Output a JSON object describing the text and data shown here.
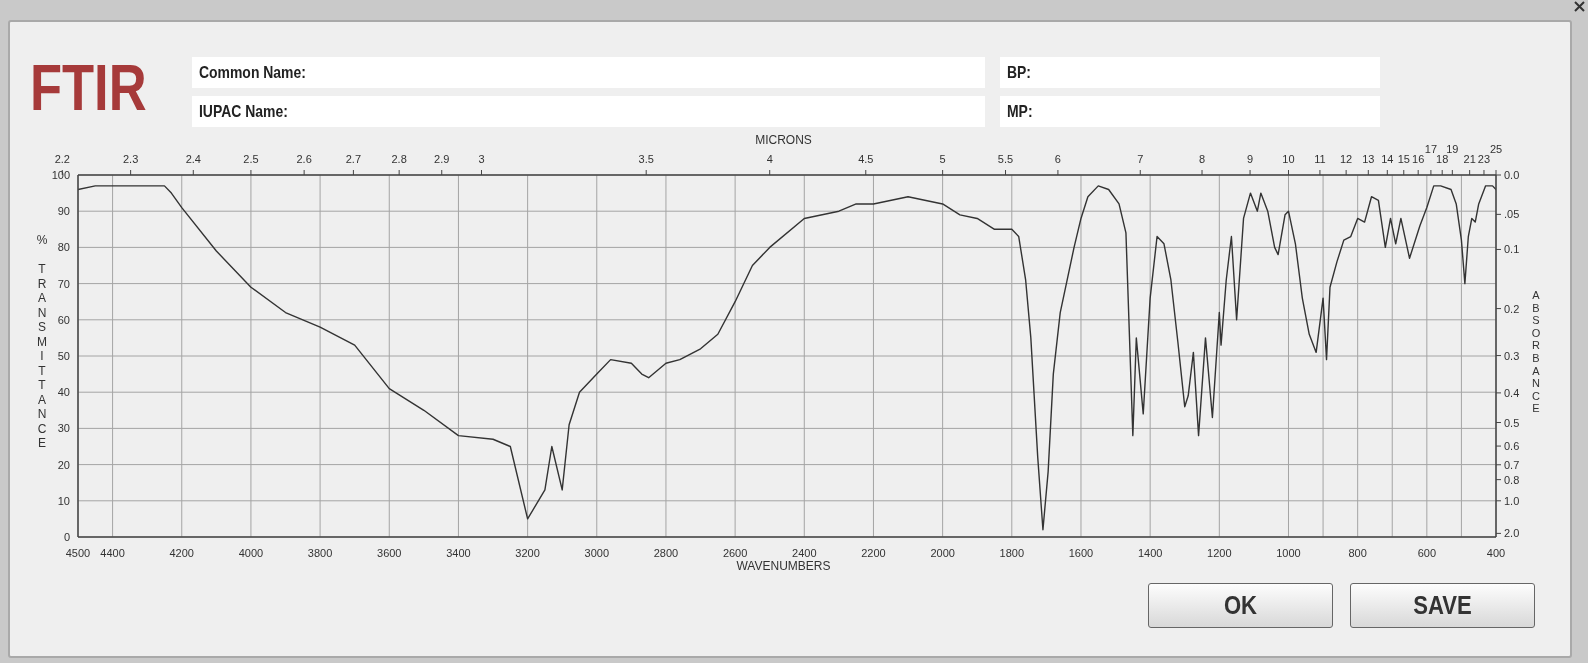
{
  "chart_data": {
    "type": "line",
    "title": "FTIR",
    "xlabel": "WAVENUMBERS",
    "x2label": "MICRONS",
    "ylabel": "% TRANSMITTANCE",
    "y2label": "ABSORBANCE",
    "x": [
      4500,
      4450,
      4350,
      4250,
      4230,
      4200,
      4100,
      4000,
      3900,
      3800,
      3700,
      3600,
      3500,
      3400,
      3300,
      3250,
      3200,
      3150,
      3130,
      3100,
      3080,
      3050,
      3000,
      2960,
      2900,
      2870,
      2850,
      2800,
      2760,
      2700,
      2650,
      2600,
      2550,
      2500,
      2400,
      2300,
      2250,
      2200,
      2100,
      2000,
      1950,
      1900,
      1850,
      1800,
      1780,
      1760,
      1745,
      1725,
      1710,
      1695,
      1680,
      1660,
      1620,
      1600,
      1580,
      1550,
      1520,
      1490,
      1470,
      1450,
      1440,
      1420,
      1400,
      1380,
      1360,
      1340,
      1320,
      1300,
      1290,
      1275,
      1260,
      1240,
      1220,
      1200,
      1195,
      1180,
      1165,
      1150,
      1130,
      1110,
      1090,
      1080,
      1060,
      1040,
      1030,
      1010,
      1000,
      980,
      960,
      940,
      920,
      900,
      890,
      880,
      860,
      840,
      820,
      800,
      780,
      760,
      740,
      720,
      705,
      690,
      675,
      650,
      620,
      600,
      580,
      560,
      530,
      515,
      500,
      490,
      480,
      470,
      460,
      450,
      430,
      410,
      400
    ],
    "values": [
      96,
      97,
      97,
      97,
      95,
      91,
      79,
      69,
      62,
      58,
      53,
      41,
      35,
      28,
      27,
      25,
      5,
      13,
      25,
      13,
      31,
      40,
      45,
      49,
      48,
      45,
      44,
      48,
      49,
      52,
      56,
      65,
      75,
      80,
      88,
      90,
      92,
      92,
      94,
      92,
      89,
      88,
      85,
      85,
      83,
      71,
      55,
      22,
      2,
      18,
      45,
      62,
      80,
      88,
      94,
      97,
      96,
      92,
      84,
      28,
      55,
      34,
      66,
      83,
      81,
      71,
      54,
      36,
      39,
      51,
      28,
      55,
      33,
      62,
      53,
      71,
      83,
      60,
      88,
      95,
      90,
      95,
      90,
      80,
      78,
      89,
      90,
      81,
      66,
      56,
      51,
      66,
      49,
      69,
      76,
      82,
      83,
      88,
      87,
      94,
      93,
      80,
      88,
      81,
      88,
      77,
      86,
      91,
      97,
      97,
      96,
      92,
      82,
      70,
      83,
      88,
      87,
      92,
      97,
      97,
      96
    ],
    "color": "#333333",
    "xlim": [
      4500,
      400
    ],
    "xticks": [
      4500,
      4400,
      4200,
      4000,
      3800,
      3600,
      3400,
      3200,
      3000,
      2800,
      2600,
      2400,
      2200,
      2000,
      1800,
      1600,
      1400,
      1200,
      1000,
      {
        "value": 900,
        "label": null
      },
      800,
      {
        "value": 700,
        "label": null
      },
      600,
      {
        "value": 500,
        "label": null
      },
      400
    ],
    "ylim": [
      0,
      100
    ],
    "yticks": [
      0,
      10,
      20,
      30,
      40,
      50,
      60,
      70,
      80,
      90,
      100
    ],
    "grid": true,
    "annotations": [
      "Common Name:",
      "IUPAC Name:",
      "BP:",
      "MP:",
      "OK",
      "SAVE",
      "2.2",
      "2.3",
      "2.4",
      "2.5",
      "2.6",
      "2.7",
      "2.8",
      "2.9",
      "3",
      "3.5",
      "4",
      "4.5",
      "5",
      "5.5",
      "6",
      "7",
      "8",
      "9",
      "10",
      "11",
      "12",
      "13",
      "14",
      "15",
      "16",
      "17",
      "18",
      "19",
      "21",
      "23",
      "25",
      "2.0",
      "1.0",
      "0.8",
      "0.7",
      "0.6",
      "0.5",
      "0.4",
      "0.3",
      "0.2",
      "0.1",
      ".05",
      "0.0"
    ]
  }
}
